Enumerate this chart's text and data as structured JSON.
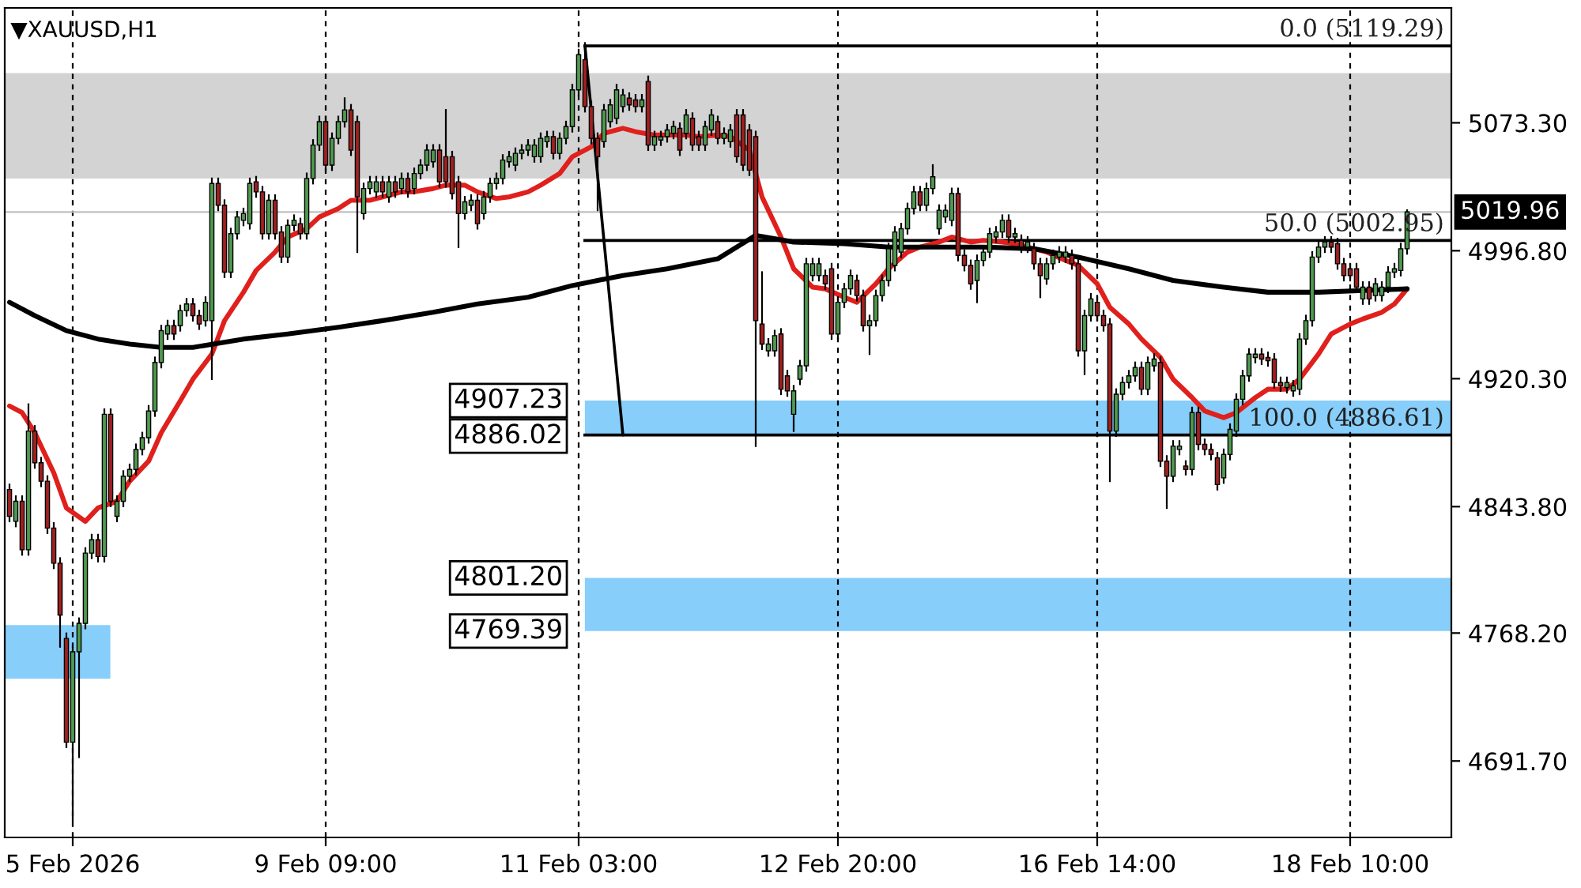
{
  "chart_data": {
    "type": "candlestick",
    "title": "▼XAUUSD,H1",
    "categories": [
      null,
      null,
      null,
      null,
      null,
      null,
      null,
      null,
      null,
      null,
      "5 Feb 2026",
      null,
      null,
      null,
      null,
      null,
      null,
      null,
      null,
      null,
      null,
      null,
      null,
      null,
      null,
      null,
      null,
      null,
      null,
      null,
      null,
      null,
      null,
      null,
      null,
      null,
      null,
      null,
      null,
      null,
      null,
      null,
      null,
      null,
      null,
      null,
      null,
      null,
      null,
      null,
      "9 Feb 09:00",
      null,
      null,
      null,
      null,
      null,
      null,
      null,
      null,
      null,
      null,
      null,
      null,
      null,
      null,
      null,
      null,
      null,
      null,
      null,
      null,
      null,
      null,
      null,
      null,
      null,
      null,
      null,
      null,
      null,
      null,
      null,
      null,
      null,
      null,
      null,
      null,
      null,
      null,
      null,
      "11 Feb 03:00",
      null,
      null,
      null,
      null,
      null,
      null,
      null,
      null,
      null,
      null,
      null,
      null,
      null,
      null,
      null,
      null,
      null,
      null,
      null,
      null,
      null,
      null,
      null,
      null,
      null,
      null,
      null,
      null,
      null,
      null,
      null,
      null,
      null,
      null,
      null,
      null,
      null,
      null,
      null,
      null,
      "12 Feb 20:00",
      null,
      null,
      null,
      null,
      null,
      null,
      null,
      null,
      null,
      null,
      null,
      null,
      null,
      null,
      null,
      null,
      null,
      null,
      null,
      null,
      null,
      null,
      null,
      null,
      null,
      null,
      null,
      null,
      null,
      null,
      null,
      null,
      null,
      null,
      null,
      null,
      null,
      null,
      null,
      null,
      "16 Feb 14:00",
      null,
      null,
      null,
      null,
      null,
      null,
      null,
      null,
      null,
      null,
      null,
      null,
      null,
      null,
      null,
      null,
      null,
      null,
      null,
      null,
      null,
      null,
      null,
      null,
      null,
      null,
      null,
      null,
      null,
      null,
      null,
      null,
      null,
      null,
      null,
      null,
      null,
      null,
      null,
      "18 Feb 10:00",
      null,
      null,
      null,
      null,
      null,
      null,
      null,
      null,
      null
    ],
    "ohlc": [
      [
        4854,
        4857,
        4835,
        4838
      ],
      [
        4835,
        4850,
        4832,
        4847
      ],
      [
        4847,
        4850,
        4815,
        4818
      ],
      [
        4818,
        4905,
        4815,
        4889
      ],
      [
        4889,
        4892,
        4867,
        4870
      ],
      [
        4870,
        4873,
        4856,
        4859
      ],
      [
        4859,
        4862,
        4828,
        4831
      ],
      [
        4831,
        4834,
        4807,
        4810
      ],
      [
        4810,
        4813,
        4760,
        4779
      ],
      [
        4765,
        4768,
        4700,
        4703
      ],
      [
        4703,
        4760,
        4656,
        4757
      ],
      [
        4757,
        4777,
        4694,
        4774
      ],
      [
        4774,
        4819,
        4771,
        4816
      ],
      [
        4816,
        4827,
        4813,
        4824
      ],
      [
        4824,
        4827,
        4811,
        4814
      ],
      [
        4814,
        4902,
        4811,
        4899
      ],
      [
        4899,
        4902,
        4844,
        4847
      ],
      [
        4838,
        4850,
        4835,
        4847
      ],
      [
        4847,
        4865,
        4844,
        4862
      ],
      [
        4862,
        4869,
        4859,
        4866
      ],
      [
        4866,
        4881,
        4863,
        4878
      ],
      [
        4878,
        4888,
        4875,
        4885
      ],
      [
        4885,
        4904,
        4882,
        4901
      ],
      [
        4901,
        4933,
        4898,
        4930
      ],
      [
        4930,
        4952,
        4927,
        4949
      ],
      [
        4947,
        4955,
        4944,
        4952
      ],
      [
        4952,
        4955,
        4944,
        4947
      ],
      [
        4952,
        4964,
        4949,
        4961
      ],
      [
        4961,
        4968,
        4958,
        4965
      ],
      [
        4965,
        4968,
        4955,
        4958
      ],
      [
        4958,
        4961,
        4950,
        4953
      ],
      [
        4955,
        4969,
        4952,
        4966
      ],
      [
        4955,
        5040,
        4920,
        5037
      ],
      [
        5037,
        5040,
        5021,
        5024
      ],
      [
        5024,
        5027,
        4981,
        4984
      ],
      [
        4984,
        5010,
        4981,
        5007
      ],
      [
        5007,
        5020,
        5004,
        5017
      ],
      [
        5015,
        5022,
        5012,
        5019
      ],
      [
        5013,
        5040,
        5010,
        5037
      ],
      [
        5038,
        5041,
        5029,
        5032
      ],
      [
        5032,
        5035,
        5004,
        5007
      ],
      [
        5007,
        5030,
        5004,
        5027
      ],
      [
        5027,
        5030,
        5004,
        5007
      ],
      [
        5008,
        5011,
        4990,
        4993
      ],
      [
        4993,
        5015,
        4990,
        5012
      ],
      [
        5012,
        5018,
        5009,
        5015
      ],
      [
        5013,
        5016,
        5004,
        5007
      ],
      [
        5007,
        5043,
        5004,
        5040
      ],
      [
        5040,
        5063,
        5037,
        5060
      ],
      [
        5060,
        5077,
        5057,
        5074
      ],
      [
        5074,
        5077,
        5045,
        5048
      ],
      [
        5048,
        5067,
        5045,
        5064
      ],
      [
        5064,
        5077,
        5061,
        5074
      ],
      [
        5074,
        5088,
        5071,
        5081
      ],
      [
        5081,
        5084,
        5054,
        5057
      ],
      [
        5074,
        5077,
        4996,
        5029
      ],
      [
        5019,
        5037,
        5016,
        5034
      ],
      [
        5034,
        5041,
        5031,
        5038
      ],
      [
        5032,
        5041,
        5029,
        5038
      ],
      [
        5038,
        5041,
        5029,
        5032
      ],
      [
        5029,
        5041,
        5026,
        5038
      ],
      [
        5038,
        5041,
        5029,
        5032
      ],
      [
        5034,
        5043,
        5031,
        5040
      ],
      [
        5040,
        5043,
        5029,
        5032
      ],
      [
        5034,
        5046,
        5031,
        5043
      ],
      [
        5043,
        5051,
        5040,
        5048
      ],
      [
        5048,
        5060,
        5045,
        5057
      ],
      [
        5050,
        5060,
        5047,
        5057
      ],
      [
        5057,
        5060,
        5035,
        5038
      ],
      [
        5053,
        5081,
        5035,
        5038
      ],
      [
        5053,
        5056,
        5028,
        5031
      ],
      [
        5038,
        5041,
        4999,
        5019
      ],
      [
        5019,
        5029,
        5016,
        5026
      ],
      [
        5024,
        5030,
        5021,
        5027
      ],
      [
        5027,
        5030,
        5010,
        5013
      ],
      [
        5019,
        5032,
        5016,
        5029
      ],
      [
        5029,
        5040,
        5026,
        5037
      ],
      [
        5037,
        5043,
        5034,
        5040
      ],
      [
        5040,
        5054,
        5037,
        5051
      ],
      [
        5050,
        5056,
        5047,
        5053
      ],
      [
        5048,
        5058,
        5045,
        5055
      ],
      [
        5055,
        5060,
        5052,
        5057
      ],
      [
        5057,
        5063,
        5054,
        5060
      ],
      [
        5053,
        5063,
        5050,
        5060
      ],
      [
        5053,
        5067,
        5050,
        5064
      ],
      [
        5062,
        5068,
        5059,
        5065
      ],
      [
        5065,
        5068,
        5052,
        5055
      ],
      [
        5055,
        5067,
        5052,
        5064
      ],
      [
        5064,
        5074,
        5061,
        5071
      ],
      [
        5071,
        5096,
        5068,
        5093
      ],
      [
        5093,
        5117,
        5090,
        5114
      ],
      [
        5111,
        5121,
        5080,
        5083
      ],
      [
        5083,
        5086,
        5061,
        5064
      ],
      [
        5064,
        5067,
        5021,
        5053
      ],
      [
        5062,
        5084,
        5059,
        5081
      ],
      [
        5074,
        5087,
        5071,
        5084
      ],
      [
        5076,
        5096,
        5073,
        5093
      ],
      [
        5083,
        5093,
        5080,
        5090
      ],
      [
        5088,
        5091,
        5081,
        5084
      ],
      [
        5087,
        5090,
        5080,
        5083
      ],
      [
        5083,
        5090,
        5080,
        5087
      ],
      [
        5098,
        5101,
        5057,
        5060
      ],
      [
        5060,
        5068,
        5057,
        5065
      ],
      [
        5063,
        5068,
        5060,
        5065
      ],
      [
        5065,
        5072,
        5062,
        5069
      ],
      [
        5067,
        5074,
        5064,
        5071
      ],
      [
        5070,
        5073,
        5054,
        5057
      ],
      [
        5067,
        5081,
        5064,
        5078
      ],
      [
        5076,
        5079,
        5057,
        5060
      ],
      [
        5065,
        5068,
        5057,
        5060
      ],
      [
        5060,
        5074,
        5057,
        5071
      ],
      [
        5069,
        5081,
        5066,
        5078
      ],
      [
        5074,
        5077,
        5061,
        5064
      ],
      [
        5064,
        5070,
        5061,
        5067
      ],
      [
        5062,
        5072,
        5059,
        5069
      ],
      [
        5078,
        5081,
        5050,
        5053
      ],
      [
        5078,
        5081,
        5045,
        5048
      ],
      [
        5069,
        5072,
        5042,
        5045
      ],
      [
        5065,
        5068,
        4880,
        4955
      ],
      [
        4953,
        4984,
        4938,
        4941
      ],
      [
        4937,
        4944,
        4934,
        4941
      ],
      [
        4937,
        4949,
        4934,
        4946
      ],
      [
        4947,
        4950,
        4911,
        4914
      ],
      [
        4922,
        4925,
        4910,
        4913
      ],
      [
        4899,
        4916,
        4889,
        4913
      ],
      [
        4920,
        4931,
        4917,
        4928
      ],
      [
        4928,
        4992,
        4925,
        4989
      ],
      [
        4982,
        4992,
        4979,
        4989
      ],
      [
        4982,
        4992,
        4979,
        4989
      ],
      [
        4982,
        4985,
        4974,
        4977
      ],
      [
        4986,
        4989,
        4944,
        4947
      ],
      [
        4947,
        4969,
        4944,
        4966
      ],
      [
        4966,
        4977,
        4963,
        4974
      ],
      [
        4974,
        4985,
        4971,
        4982
      ],
      [
        4979,
        4982,
        4967,
        4970
      ],
      [
        4970,
        4973,
        4949,
        4952
      ],
      [
        4952,
        4958,
        4935,
        4955
      ],
      [
        4955,
        4973,
        4952,
        4970
      ],
      [
        4970,
        4982,
        4967,
        4979
      ],
      [
        4979,
        5001,
        4976,
        4998
      ],
      [
        4988,
        5011,
        4985,
        5008
      ],
      [
        4996,
        5013,
        4993,
        5010
      ],
      [
        5010,
        5025,
        5007,
        5022
      ],
      [
        5022,
        5035,
        5019,
        5032
      ],
      [
        5032,
        5035,
        5021,
        5024
      ],
      [
        5024,
        5037,
        5021,
        5034
      ],
      [
        5034,
        5048,
        5031,
        5041
      ],
      [
        5010,
        5024,
        5007,
        5021
      ],
      [
        5017,
        5024,
        5014,
        5021
      ],
      [
        5015,
        5034,
        5012,
        5031
      ],
      [
        5031,
        5034,
        4991,
        4994
      ],
      [
        4994,
        4997,
        4985,
        4988
      ],
      [
        4988,
        4991,
        4974,
        4977
      ],
      [
        4979,
        4994,
        4966,
        4991
      ],
      [
        4991,
        4999,
        4988,
        4996
      ],
      [
        4996,
        5010,
        4993,
        5007
      ],
      [
        5005,
        5011,
        5002,
        5008
      ],
      [
        5008,
        5018,
        5005,
        5015
      ],
      [
        5015,
        5018,
        5002,
        5005
      ],
      [
        5005,
        5010,
        5002,
        5007
      ],
      [
        5003,
        5006,
        4996,
        4999
      ],
      [
        4999,
        5005,
        4996,
        5002
      ],
      [
        4998,
        5001,
        4986,
        4989
      ],
      [
        4989,
        4992,
        4969,
        4982
      ],
      [
        4980,
        4992,
        4977,
        4989
      ],
      [
        4989,
        4997,
        4986,
        4994
      ],
      [
        4993,
        4999,
        4990,
        4996
      ],
      [
        4993,
        4999,
        4990,
        4996
      ],
      [
        4994,
        4997,
        4986,
        4989
      ],
      [
        4989,
        4992,
        4934,
        4937
      ],
      [
        4937,
        4961,
        4923,
        4958
      ],
      [
        4958,
        4971,
        4955,
        4968
      ],
      [
        4966,
        4969,
        4955,
        4958
      ],
      [
        4958,
        4961,
        4949,
        4952
      ],
      [
        4953,
        4956,
        4859,
        4889
      ],
      [
        4889,
        4914,
        4886,
        4911
      ],
      [
        4911,
        4921,
        4908,
        4918
      ],
      [
        4918,
        4925,
        4915,
        4922
      ],
      [
        4922,
        4930,
        4919,
        4927
      ],
      [
        4927,
        4930,
        4911,
        4914
      ],
      [
        4914,
        4933,
        4911,
        4930
      ],
      [
        4928,
        4935,
        4925,
        4932
      ],
      [
        4930,
        4933,
        4868,
        4871
      ],
      [
        4871,
        4874,
        4843,
        4862
      ],
      [
        4862,
        4883,
        4859,
        4880
      ],
      [
        4878,
        4883,
        4875,
        4880
      ],
      [
        4868,
        4871,
        4863,
        4866
      ],
      [
        4866,
        4903,
        4863,
        4900
      ],
      [
        4900,
        4903,
        4878,
        4881
      ],
      [
        4881,
        4884,
        4875,
        4878
      ],
      [
        4878,
        4881,
        4872,
        4875
      ],
      [
        4873,
        4876,
        4854,
        4857
      ],
      [
        4861,
        4878,
        4858,
        4875
      ],
      [
        4875,
        4893,
        4872,
        4890
      ],
      [
        4889,
        4911,
        4886,
        4908
      ],
      [
        4908,
        4925,
        4905,
        4922
      ],
      [
        4922,
        4938,
        4919,
        4935
      ],
      [
        4933,
        4938,
        4930,
        4935
      ],
      [
        4935,
        4938,
        4929,
        4932
      ],
      [
        4933,
        4936,
        4928,
        4931
      ],
      [
        4932,
        4935,
        4915,
        4918
      ],
      [
        4918,
        4921,
        4913,
        4916
      ],
      [
        4915,
        4921,
        4912,
        4918
      ],
      [
        4913,
        4919,
        4910,
        4916
      ],
      [
        4914,
        4947,
        4911,
        4944
      ],
      [
        4944,
        4958,
        4941,
        4955
      ],
      [
        4955,
        4996,
        4952,
        4993
      ],
      [
        4993,
        5002,
        4990,
        4999
      ],
      [
        4999,
        5005,
        4996,
        5002
      ],
      [
        5002,
        5005,
        4996,
        4999
      ],
      [
        5001,
        5004,
        4986,
        4989
      ],
      [
        4989,
        4992,
        4979,
        4982
      ],
      [
        4986,
        4989,
        4979,
        4982
      ],
      [
        4986,
        4989,
        4972,
        4975
      ],
      [
        4968,
        4978,
        4965,
        4975
      ],
      [
        4975,
        4978,
        4965,
        4968
      ],
      [
        4970,
        4980,
        4967,
        4977
      ],
      [
        4970,
        4978,
        4967,
        4975
      ],
      [
        4975,
        4987,
        4972,
        4984
      ],
      [
        4984,
        4989,
        4981,
        4986
      ],
      [
        4985,
        5001,
        4982,
        4998
      ],
      [
        4998,
        5021,
        4995,
        5020
      ]
    ],
    "colors": [
      "#a02020",
      "#4f9a4f",
      "#a02020",
      "#4f9a4f",
      "#a02020",
      "#a02020",
      "#a02020",
      "#a02020",
      "#a02020",
      "#a02020",
      "#4f9a4f",
      "#4f9a4f",
      "#4f9a4f",
      "#4f9a4f",
      "#a02020",
      "#4f9a4f",
      "#a02020",
      "#4f9a4f",
      "#4f9a4f",
      "#4f9a4f",
      "#4f9a4f",
      "#4f9a4f",
      "#4f9a4f",
      "#4f9a4f",
      "#4f9a4f",
      "#4f9a4f",
      "#a02020",
      "#4f9a4f",
      "#4f9a4f",
      "#a02020",
      "#a02020",
      "#4f9a4f",
      "#4f9a4f",
      "#a02020",
      "#a02020",
      "#4f9a4f",
      "#4f9a4f",
      "#4f9a4f",
      "#4f9a4f",
      "#a02020",
      "#a02020",
      "#4f9a4f",
      "#a02020",
      "#a02020",
      "#4f9a4f",
      "#4f9a4f",
      "#a02020",
      "#4f9a4f",
      "#4f9a4f",
      "#4f9a4f",
      "#a02020",
      "#4f9a4f",
      "#4f9a4f",
      "#4f9a4f",
      "#a02020",
      "#a02020",
      "#4f9a4f",
      "#4f9a4f",
      "#4f9a4f",
      "#a02020",
      "#4f9a4f",
      "#a02020",
      "#4f9a4f",
      "#a02020",
      "#4f9a4f",
      "#4f9a4f",
      "#4f9a4f",
      "#4f9a4f",
      "#a02020",
      "#a02020",
      "#a02020",
      "#a02020",
      "#4f9a4f",
      "#4f9a4f",
      "#a02020",
      "#4f9a4f",
      "#4f9a4f",
      "#4f9a4f",
      "#4f9a4f",
      "#4f9a4f",
      "#4f9a4f",
      "#4f9a4f",
      "#4f9a4f",
      "#4f9a4f",
      "#4f9a4f",
      "#4f9a4f",
      "#a02020",
      "#4f9a4f",
      "#4f9a4f",
      "#4f9a4f",
      "#4f9a4f",
      "#a02020",
      "#a02020",
      "#a02020",
      "#4f9a4f",
      "#4f9a4f",
      "#4f9a4f",
      "#4f9a4f",
      "#a02020",
      "#a02020",
      "#4f9a4f",
      "#a02020",
      "#4f9a4f",
      "#4f9a4f",
      "#4f9a4f",
      "#4f9a4f",
      "#a02020",
      "#4f9a4f",
      "#a02020",
      "#a02020",
      "#4f9a4f",
      "#4f9a4f",
      "#a02020",
      "#4f9a4f",
      "#4f9a4f",
      "#a02020",
      "#a02020",
      "#a02020",
      "#a02020",
      "#a02020",
      "#4f9a4f",
      "#4f9a4f",
      "#a02020",
      "#a02020",
      "#4f9a4f",
      "#4f9a4f",
      "#4f9a4f",
      "#4f9a4f",
      "#4f9a4f",
      "#a02020",
      "#a02020",
      "#4f9a4f",
      "#4f9a4f",
      "#4f9a4f",
      "#a02020",
      "#a02020",
      "#4f9a4f",
      "#4f9a4f",
      "#4f9a4f",
      "#4f9a4f",
      "#4f9a4f",
      "#4f9a4f",
      "#4f9a4f",
      "#4f9a4f",
      "#a02020",
      "#4f9a4f",
      "#4f9a4f",
      "#4f9a4f",
      "#4f9a4f",
      "#4f9a4f",
      "#a02020",
      "#a02020",
      "#a02020",
      "#4f9a4f",
      "#4f9a4f",
      "#4f9a4f",
      "#4f9a4f",
      "#4f9a4f",
      "#a02020",
      "#4f9a4f",
      "#a02020",
      "#4f9a4f",
      "#a02020",
      "#a02020",
      "#4f9a4f",
      "#4f9a4f",
      "#4f9a4f",
      "#4f9a4f",
      "#a02020",
      "#a02020",
      "#4f9a4f",
      "#4f9a4f",
      "#a02020",
      "#a02020",
      "#a02020",
      "#4f9a4f",
      "#4f9a4f",
      "#4f9a4f",
      "#4f9a4f",
      "#a02020",
      "#4f9a4f",
      "#4f9a4f",
      "#a02020",
      "#a02020",
      "#4f9a4f",
      "#4f9a4f",
      "#a02020",
      "#4f9a4f",
      "#a02020",
      "#a02020",
      "#a02020",
      "#a02020",
      "#4f9a4f",
      "#4f9a4f",
      "#4f9a4f",
      "#4f9a4f",
      "#4f9a4f",
      "#4f9a4f",
      "#a02020",
      "#a02020",
      "#a02020",
      "#a02020",
      "#4f9a4f",
      "#4f9a4f",
      "#4f9a4f",
      "#4f9a4f",
      "#4f9a4f",
      "#4f9a4f",
      "#4f9a4f",
      "#a02020",
      "#a02020",
      "#a02020",
      "#a02020",
      "#a02020",
      "#4f9a4f",
      "#a02020",
      "#4f9a4f",
      "#4f9a4f",
      "#4f9a4f",
      "#4f9a4f",
      "#4f9a4f",
      "#4f9a4f"
    ],
    "series": [
      {
        "type": "line",
        "color": "#e0201c",
        "values": [
          4904,
          null,
          4900,
          null,
          4888,
          null,
          null,
          4864,
          null,
          4843,
          null,
          null,
          4835,
          null,
          4843,
          null,
          null,
          4847,
          null,
          4859,
          null,
          null,
          4871,
          null,
          4888,
          null,
          null,
          4907,
          null,
          4920,
          null,
          null,
          4935,
          null,
          4955,
          null,
          null,
          4972,
          null,
          4985,
          null,
          null,
          4996,
          null,
          5005,
          null,
          null,
          5010,
          null,
          5017,
          null,
          null,
          5022,
          null,
          5027,
          null,
          null,
          5027,
          null,
          5029,
          null,
          null,
          5032,
          null,
          5032,
          null,
          null,
          5034,
          null,
          5036,
          null,
          null,
          5036,
          null,
          5032,
          null,
          null,
          5028,
          null,
          5029,
          null,
          null,
          5032,
          null,
          5036,
          null,
          null,
          5043,
          null,
          5053,
          null,
          null,
          5059,
          null,
          5067,
          null,
          null,
          5070,
          null,
          5068,
          null,
          null,
          5066,
          null,
          5066,
          null,
          null,
          5066,
          null,
          5065,
          null,
          null,
          5066,
          null,
          5065,
          null,
          null,
          5057,
          null,
          5029,
          null,
          null,
          5005,
          null,
          4986,
          null,
          null,
          4975,
          null,
          4974,
          null,
          null,
          4969,
          null,
          4966,
          null,
          null,
          4977,
          null,
          4986,
          null,
          null,
          4996,
          null,
          4999,
          null,
          null,
          5002,
          null,
          5005,
          null,
          null,
          5002,
          null,
          5003,
          null,
          null,
          5002,
          null,
          5001,
          null,
          null,
          4998,
          null,
          4996,
          null,
          null,
          4991,
          null,
          4988,
          null,
          null,
          4977,
          null,
          4963,
          null,
          null,
          4953,
          null,
          4944,
          null,
          null,
          4933,
          null,
          4920,
          null,
          null,
          4909,
          null,
          4901,
          null,
          null,
          4897,
          null,
          4900,
          null,
          null,
          4909,
          null,
          4914,
          null,
          null,
          4914,
          null,
          4920,
          null,
          null,
          4935,
          null,
          4947,
          null,
          null,
          4953,
          null,
          4956,
          null,
          null,
          4960,
          null,
          4965,
          null,
          4974
        ]
      },
      {
        "type": "line",
        "color": "#000000",
        "values": [
          4966,
          null,
          null,
          null,
          4958,
          null,
          null,
          null,
          null,
          4949,
          null,
          null,
          null,
          null,
          4944,
          null,
          null,
          null,
          null,
          4941,
          null,
          null,
          null,
          null,
          4939,
          null,
          null,
          null,
          null,
          4939,
          null,
          null,
          null,
          null,
          null,
          null,
          null,
          4944,
          null,
          null,
          null,
          null,
          null,
          null,
          4947,
          null,
          null,
          null,
          null,
          null,
          null,
          null,
          4951,
          null,
          null,
          null,
          null,
          null,
          null,
          4955,
          null,
          null,
          null,
          null,
          null,
          null,
          null,
          4960,
          null,
          null,
          null,
          null,
          null,
          null,
          4965,
          null,
          null,
          null,
          null,
          null,
          null,
          null,
          4969,
          null,
          null,
          null,
          null,
          null,
          null,
          4976,
          null,
          null,
          null,
          null,
          null,
          null,
          null,
          4982,
          null,
          null,
          null,
          null,
          null,
          null,
          4986,
          null,
          null,
          null,
          null,
          null,
          null,
          null,
          4992,
          null,
          null,
          null,
          null,
          null,
          5006,
          null,
          null,
          null,
          null,
          null,
          5002,
          null,
          null,
          null,
          null,
          null,
          null,
          null,
          5001,
          null,
          null,
          null,
          null,
          null,
          null,
          4999,
          null,
          null,
          null,
          null,
          null,
          null,
          null,
          4999,
          null,
          null,
          null,
          null,
          null,
          null,
          4999,
          null,
          null,
          null,
          null,
          null,
          null,
          null,
          4998,
          null,
          null,
          null,
          null,
          null,
          null,
          4993,
          null,
          null,
          null,
          null,
          null,
          null,
          null,
          4986,
          null,
          null,
          null,
          null,
          null,
          null,
          4979,
          null,
          null,
          null,
          null,
          null,
          null,
          null,
          4975,
          null,
          null,
          null,
          null,
          null,
          null,
          4972,
          null,
          null,
          null,
          null,
          null,
          null,
          null,
          4972,
          null,
          null,
          null,
          null,
          null,
          null,
          4973,
          null,
          null,
          null,
          null,
          null,
          null,
          4974
        ]
      },
      {
        "type": "line",
        "color": "#000000",
        "values": [
          null,
          null,
          null,
          null,
          null,
          null,
          null,
          null,
          null,
          null,
          null,
          null,
          null,
          null,
          null,
          null,
          null,
          null,
          null,
          null,
          null,
          null,
          null,
          null,
          null,
          null,
          null,
          null,
          null,
          null,
          null,
          null,
          null,
          null,
          null,
          null,
          null,
          null,
          null,
          null,
          null,
          null,
          null,
          null,
          null,
          null,
          null,
          null,
          null,
          null,
          null,
          null,
          null,
          null,
          null,
          null,
          null,
          null,
          null,
          null,
          null,
          null,
          null,
          null,
          null,
          null,
          null,
          null,
          null,
          null,
          null,
          null,
          null,
          null,
          null,
          null,
          null,
          null,
          null,
          null,
          null,
          null,
          null,
          null,
          null,
          null,
          null,
          null,
          null,
          null,
          null,
          5119.29,
          null,
          null,
          null,
          null,
          null,
          4886.61,
          null,
          null,
          null,
          null,
          null,
          null,
          null,
          null,
          null,
          null,
          null,
          null,
          null,
          null,
          null,
          null,
          null,
          null,
          null,
          null,
          null,
          null,
          null,
          null,
          null,
          null,
          null,
          null,
          null,
          null,
          null,
          null,
          null,
          null,
          null,
          null,
          null,
          null,
          null,
          null,
          null,
          null,
          null,
          null,
          null,
          null,
          null,
          null,
          null,
          null,
          null,
          null,
          null,
          null,
          null,
          null,
          null,
          null,
          null,
          null,
          null,
          null,
          null,
          null,
          null,
          null,
          null,
          null,
          null,
          null,
          null,
          null,
          null,
          null,
          null,
          null,
          null,
          null,
          null,
          null,
          null,
          null,
          null,
          null,
          null,
          null,
          null,
          null,
          null,
          null,
          null,
          null,
          null,
          null,
          null,
          null,
          null,
          null,
          null,
          null,
          null,
          null,
          null,
          null,
          null,
          null,
          null,
          null,
          null,
          null,
          null,
          null,
          null,
          null,
          null,
          null,
          null,
          null,
          null,
          null,
          null,
          null,
          null,
          null
        ]
      }
    ],
    "ylim": [
      4646,
      5142
    ],
    "yticks": [
      {
        "value": 4691.7,
        "label": "4691.70"
      },
      {
        "value": 4768.2,
        "label": "4768.20"
      },
      {
        "value": 4843.8,
        "label": "4843.80"
      },
      {
        "value": 4920.3,
        "label": "4920.30"
      },
      {
        "value": 4996.8,
        "label": "4996.80"
      },
      {
        "value": 5073.3,
        "label": "5073.30"
      }
    ],
    "grid": "x",
    "bands": [
      {
        "axis": "y",
        "from": 5040,
        "to": 5103,
        "color": "#d3d3d3"
      },
      {
        "axis": "y",
        "from": 4886.02,
        "to": 4907.23,
        "color": "#87cefa"
      },
      {
        "axis": "y",
        "from": 4769.39,
        "to": 4801.2,
        "color": "#87cefa"
      },
      {
        "axis": "y",
        "from": 4741,
        "to": 4773,
        "color": "#87cefa"
      }
    ],
    "ref_lines": [
      {
        "axis": "y",
        "value": 5019.96,
        "label": "5019.96",
        "color": "#c0c0c0"
      },
      {
        "axis": "y",
        "value": 5119.29,
        "label": "0.0 (5119.29)",
        "color": "#000000"
      },
      {
        "axis": "y",
        "value": 5002.95,
        "label": "50.0 (5002.95)",
        "color": "#000000"
      },
      {
        "axis": "y",
        "value": 4886.61,
        "label": "100.0 (4886.61)",
        "color": "#000000"
      }
    ],
    "annotations": [
      "4907.23",
      "4886.02",
      "4801.20",
      "4769.39"
    ]
  }
}
